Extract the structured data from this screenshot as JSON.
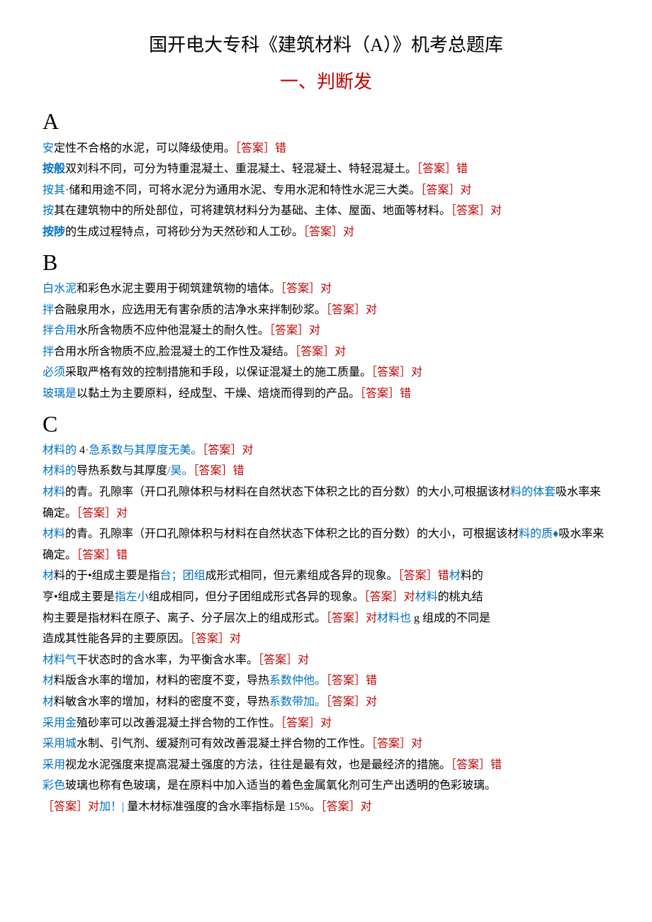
{
  "title": "国开电大专科《建筑材料（A）》机考总题库",
  "subtitle": "一、判断发",
  "sections": {
    "A": [
      {
        "pre": "安",
        "mid": "定性不合格的水泥，可以降级使用。",
        "ans": "［答案］错"
      },
      {
        "pre": "按般",
        "mid": "双刘科不同，可分为特重混凝土、重混凝土、轻混凝土、特轻混凝土。",
        "ans": "［答案］错",
        "preBold": true
      },
      {
        "pre": "按其",
        "mid": "·储和用途不同，可将水泥分为通用水泥、专用水泥和特性水泥三大类。",
        "ans": "［答案］对"
      },
      {
        "pre": "按",
        "mid": "其在建筑物中的所处部位，可将建筑材料分为基础、主体、屋面、地面等材料。",
        "ans": "［答案］对"
      },
      {
        "pre": "按陟",
        "mid": "的生成过程特点，可将砂分为天然砂和人工砂。",
        "ans": "［答案］对",
        "preBold": true
      }
    ],
    "B": [
      {
        "pre": "白水泥",
        "mid": "和彩色水泥主要用于砌筑建筑物的墙体。",
        "ans": "［答案］对"
      },
      {
        "pre": "拌",
        "mid": "合融泉用水，应选用无有害杂质的洁净水来拌制砂浆。",
        "ans": "［答案］对"
      },
      {
        "pre": "拌合用",
        "mid": "水所含物质不应仲他混凝土的耐久性。",
        "ans": "［答案］对"
      },
      {
        "pre": "拌",
        "mid": "合用水所含物质不应,",
        "mid2b": "脸",
        "mid3": "混凝土的工作性及凝结。",
        "ans": "［答案］对"
      },
      {
        "pre": "必须",
        "mid": "采取严格有效的控制措施和手段，以保证混凝土的施工质量。",
        "ans": "［答案］对"
      },
      {
        "pre": "玻璃是",
        "mid": "以黏土为主要原料，经成型、干燥、焙烧而得到的产品。",
        "ans": "［答案］错"
      }
    ],
    "C": [
      {
        "pre": "材料的",
        "mid": " 4",
        "midBlue": "·急系数与其厚度无美。",
        "ans": "［答案］对"
      },
      {
        "pre": "材料的",
        "mid": "导热系数与其厚度",
        "midBlue": "/昊。",
        "ans": "［答案］错"
      },
      {
        "pre": "材料",
        "mid": "的青。孔隙率（开口孔隙体积与材料在自然状态下体积之比的百分数）的大小,可根据该材",
        "midBlue": "料的体套",
        "mid2": "吸水率来确定。",
        "ans": "［答案］对"
      },
      {
        "pre": "材料",
        "mid": "的青。孔隙率（开口孔隙体积与材料在自然状态下体积之比的百分数）的大小，可根据该材",
        "midBlue": "料的质♦",
        "mid2": "吸水率来确定。",
        "ans": "［答案］错"
      },
      {
        "pre": "材",
        "mid": "料的于•组成主要是指",
        "midBlue": "台；团组",
        "mid2": "成形式相同，但元素组成各异的现象。",
        "ans": "［答案］错",
        "tail": "材",
        "tailMid": "料的"
      },
      {
        "plain": "亨•组成主要是",
        "midBlue": "指左小",
        "mid2": "组成相同，但分子团组成形式各异的现象。",
        "ans": "［答案］对",
        "tailBlue": "材料",
        "tail2": "的桃丸结"
      },
      {
        "plain": "构主要是指材料在原子、离子、分子层次上的组成形式。",
        "ans": "［答案］对",
        "tailBlue": "材料也",
        "tail2": " g 组成的不同是"
      },
      {
        "plain": "造成其性能各异的主要原因。",
        "ans": "［答案］对"
      },
      {
        "pre": "材料气",
        "mid": "干状态时的含水率，为平衡含水率。",
        "ans": "［答案］对"
      },
      {
        "pre": "材",
        "mid": "料版含水率的增加，材料的密度不变，导热",
        "midBlue": "系数仲他。",
        "ans": "［答案］错"
      },
      {
        "pre": "材",
        "mid": "料敏含水率的增加，材料的密度不变，导热",
        "midBlue": "系数带加。",
        "ans": "［答案］对"
      },
      {
        "pre": "采用金",
        "mid": "殖砂率可以改善混凝土拌合物的工作性。",
        "ans": "［答案］对"
      },
      {
        "pre": "采用城",
        "mid": "水制、引气剂、缓凝剂可有效改善混凝土拌合物的工作性。",
        "ans": "［答案］对"
      },
      {
        "pre": "采用",
        "mid": "视龙水泥强度来提高混凝土强度的方法，往往是最有效，也是最经济的措施。",
        "ans": "［答案］错"
      },
      {
        "pre": "彩色",
        "mid": "玻璃也称有色玻璃，是在原料中加入适当的着色金属氧化剂可生产出透明的色彩玻璃。",
        "ans": ""
      },
      {
        "ansOnly": "［答案］对",
        "tailBlue": "加！| ",
        "tail2": "量木材标准强度的含水率指标是 15%。",
        "ans2": "［答案］对"
      }
    ]
  }
}
